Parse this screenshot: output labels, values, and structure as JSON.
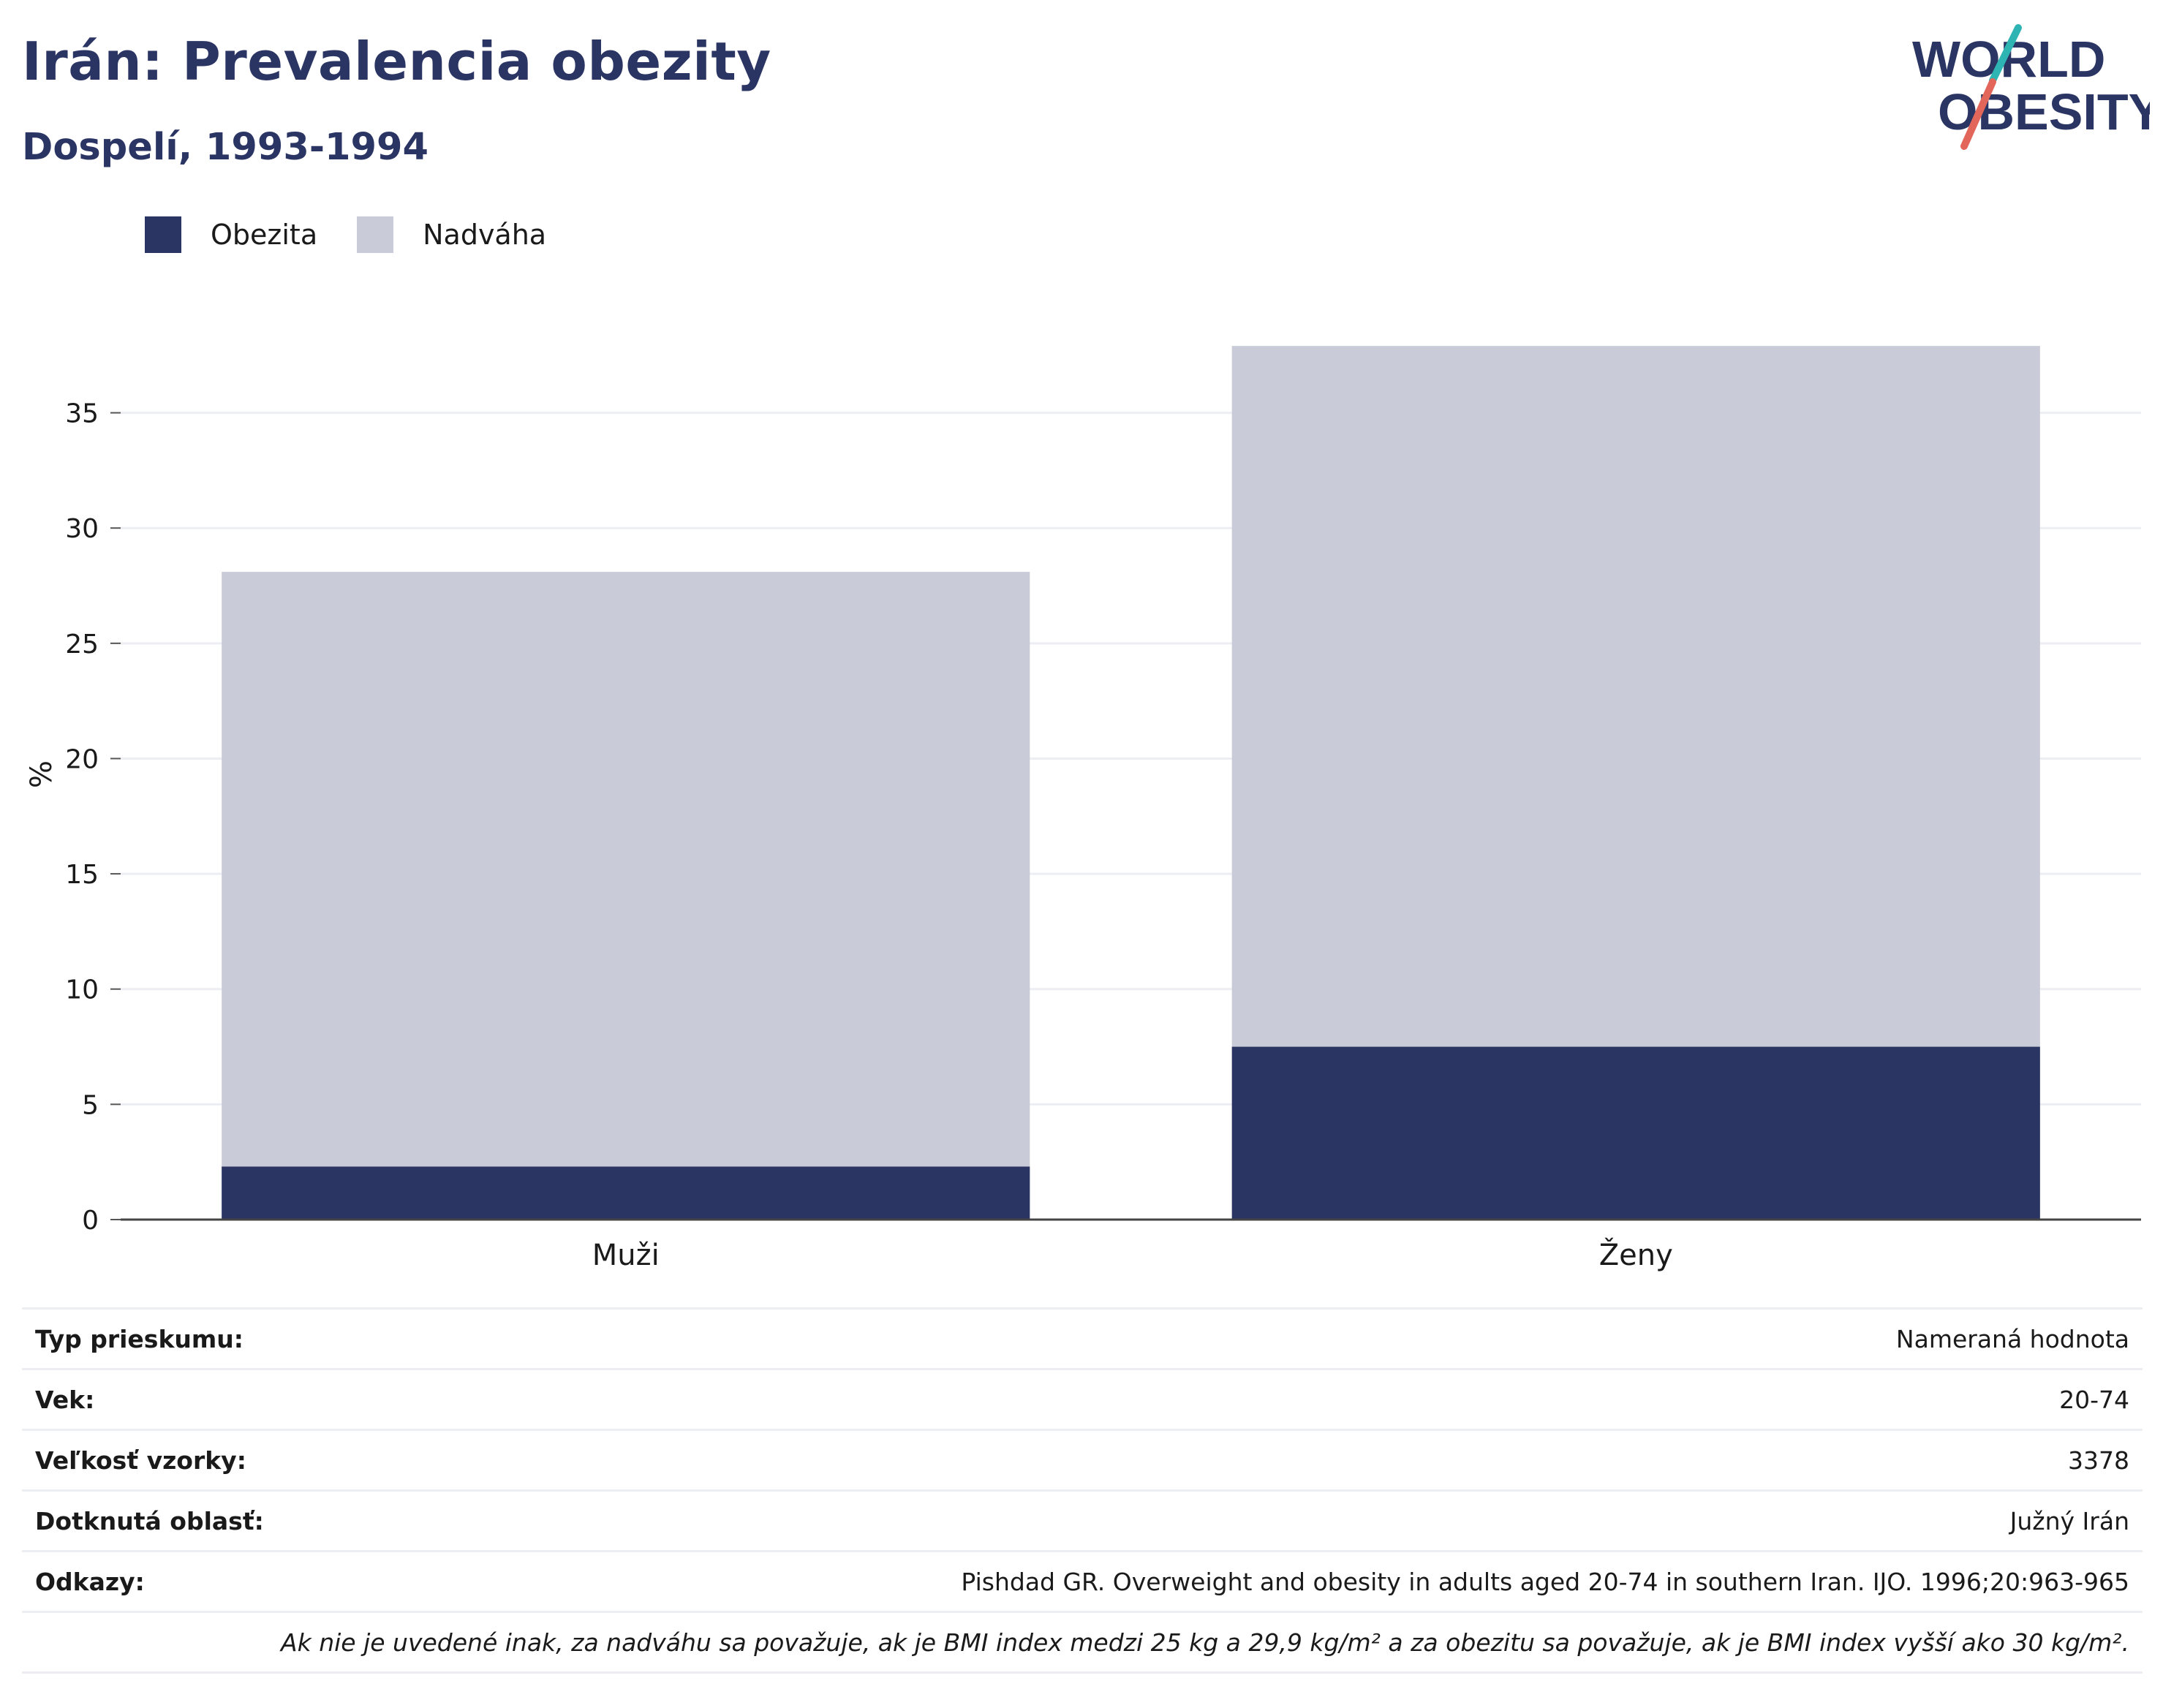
{
  "header": {
    "title": "Irán: Prevalencia obezity",
    "subtitle": "Dospelí, 1993-1994"
  },
  "logo": {
    "line1": "WORLD",
    "line2": "OBESITY",
    "colors": {
      "text": "#2b3564",
      "slash_teal": "#2fb4b4",
      "slash_coral": "#e2675a"
    }
  },
  "legend": [
    {
      "label": "Obezita",
      "color": "#2b3564"
    },
    {
      "label": "Nadváha",
      "color": "#c9ccd8"
    }
  ],
  "chart_data": {
    "type": "bar",
    "stacked": true,
    "categories": [
      "Muži",
      "Ženy"
    ],
    "series": [
      {
        "name": "Obezita",
        "color": "#2b3564",
        "values": [
          2.3,
          7.5
        ]
      },
      {
        "name": "Nadváha",
        "color": "#c9ccd8",
        "values": [
          25.8,
          30.4
        ]
      }
    ],
    "ylabel": "%",
    "ylim": [
      0,
      38
    ],
    "yticks": [
      0,
      5,
      10,
      15,
      20,
      25,
      30,
      35
    ],
    "grid": true,
    "legend_position": "top-left"
  },
  "info": [
    {
      "key": "Typ prieskumu:",
      "value": "Nameraná hodnota"
    },
    {
      "key": "Vek:",
      "value": "20-74"
    },
    {
      "key": "Veľkosť vzorky:",
      "value": "3378"
    },
    {
      "key": "Dotknutá oblasť:",
      "value": "Južný Irán"
    },
    {
      "key": "Odkazy:",
      "value": "Pishdad GR. Overweight and obesity in adults aged 20-74 in southern Iran. IJO. 1996;20:963-965"
    }
  ],
  "note": "Ak nie je uvedené inak, za nadváhu sa považuje, ak je BMI index medzi 25 kg a 29,9 kg/m² a za obezitu sa považuje, ak je BMI index vyšší ako 30 kg/m²."
}
